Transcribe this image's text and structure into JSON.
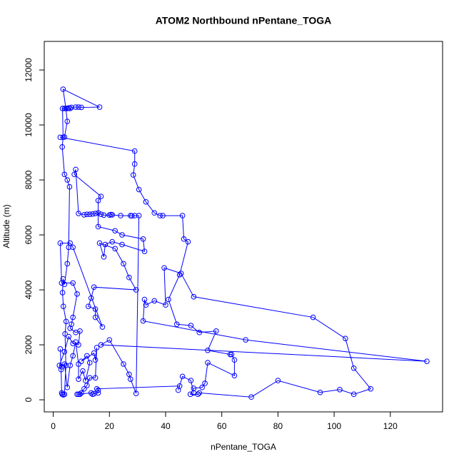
{
  "chart_data": {
    "type": "line",
    "title": "ATOM2 Northbound nPentane_TOGA",
    "xlabel": "nPentane_TOGA",
    "ylabel": "Altitude (m)",
    "color": "#0000ff",
    "x": [
      2.5,
      2.8,
      3,
      3.2,
      3.6,
      4,
      4.5,
      4.2,
      4.6,
      3.6,
      3.3,
      3.5,
      4,
      5,
      5.5,
      5.8,
      5,
      4,
      3.2,
      3.5,
      3.3,
      4,
      5,
      5.5,
      6,
      6.5,
      8,
      9,
      10,
      16.5,
      3.5,
      4.5,
      5,
      4,
      2.5,
      29,
      29,
      28.5,
      30.5,
      33,
      36,
      38,
      39,
      46,
      46.5,
      48,
      45,
      41,
      44,
      49,
      52,
      58,
      55,
      63,
      63.5,
      64.5,
      64.5,
      55,
      54,
      53,
      50,
      48.8,
      51.5,
      52,
      70.5,
      80,
      95,
      102,
      107,
      113,
      107,
      104,
      92.5,
      50,
      45.5,
      39.5,
      40,
      36,
      33,
      32.5,
      32,
      68.5,
      133,
      17,
      20,
      25,
      27,
      27.5,
      29.5,
      30.5,
      29,
      28,
      27.5,
      24,
      21,
      20.5,
      20,
      18,
      17,
      16,
      15,
      14,
      13,
      12,
      11,
      9,
      8,
      7.5,
      17,
      16,
      16,
      22,
      24.5,
      32,
      32.5,
      24.5,
      21,
      18.5,
      18,
      16.5,
      22,
      25,
      27,
      29.5,
      14.5,
      13.5,
      12.5,
      15,
      15,
      17.5,
      7,
      6,
      2.5,
      3,
      7,
      8.5,
      7,
      6.5,
      6,
      8,
      9.5,
      9,
      7,
      5.5,
      4,
      2.2,
      3,
      4,
      5,
      6,
      7,
      8,
      9,
      9,
      10.5,
      11.5,
      13,
      12,
      10,
      14.5,
      15,
      15.5,
      15,
      13,
      12,
      11,
      10,
      9.5,
      9,
      8.5,
      13.5,
      14,
      14.5,
      16,
      16,
      15.5,
      45,
      44.5,
      46,
      49,
      50
    ],
    "values": [
      1850,
      1100,
      250,
      200,
      180,
      200,
      1250,
      2400,
      2850,
      3400,
      3900,
      4400,
      4200,
      4950,
      5550,
      7750,
      8000,
      8200,
      9200,
      9550,
      10600,
      10600,
      10600,
      10620,
      10600,
      10640,
      10650,
      10650,
      10640,
      10650,
      11300,
      10600,
      10130,
      9560,
      9550,
      9050,
      8580,
      8180,
      7650,
      7200,
      6800,
      6700,
      6700,
      6700,
      5850,
      5750,
      4550,
      3650,
      2750,
      2700,
      2450,
      2500,
      1800,
      1650,
      1650,
      1450,
      880,
      1350,
      600,
      450,
      420,
      200,
      200,
      250,
      100,
      700,
      270,
      370,
      200,
      400,
      1150,
      2230,
      3000,
      3750,
      4600,
      4800,
      3450,
      3600,
      3450,
      3650,
      2870,
      2180,
      1400,
      2000,
      2180,
      1300,
      930,
      750,
      230,
      6700,
      6700,
      6690,
      6700,
      6700,
      6730,
      6740,
      6720,
      6720,
      6750,
      6800,
      6780,
      6760,
      6750,
      6750,
      6730,
      6780,
      8380,
      8200,
      7400,
      7250,
      6300,
      6150,
      6000,
      5850,
      5400,
      5650,
      5750,
      5650,
      5200,
      5700,
      5500,
      4950,
      4450,
      4000,
      4100,
      3700,
      3400,
      3300,
      3000,
      2650,
      5550,
      5700,
      5700,
      4250,
      4250,
      3850,
      3000,
      2750,
      2600,
      2450,
      2500,
      2000,
      2050,
      2300,
      1750,
      1250,
      1200,
      1300,
      450,
      1250,
      1600,
      2100,
      1300,
      750,
      1050,
      700,
      1350,
      1600,
      1400,
      1700,
      1450,
      1900,
      800,
      800,
      520,
      400,
      250,
      200,
      200,
      200,
      250,
      200,
      220,
      250,
      350,
      400,
      500,
      350,
      850,
      700,
      250
    ],
    "xlim": [
      -3.2,
      138.6
    ],
    "ylim": [
      -440,
      13040
    ],
    "xticks": [
      0,
      20,
      40,
      60,
      80,
      100,
      120
    ],
    "yticks": [
      0,
      2000,
      4000,
      6000,
      8000,
      10000,
      12000
    ]
  }
}
